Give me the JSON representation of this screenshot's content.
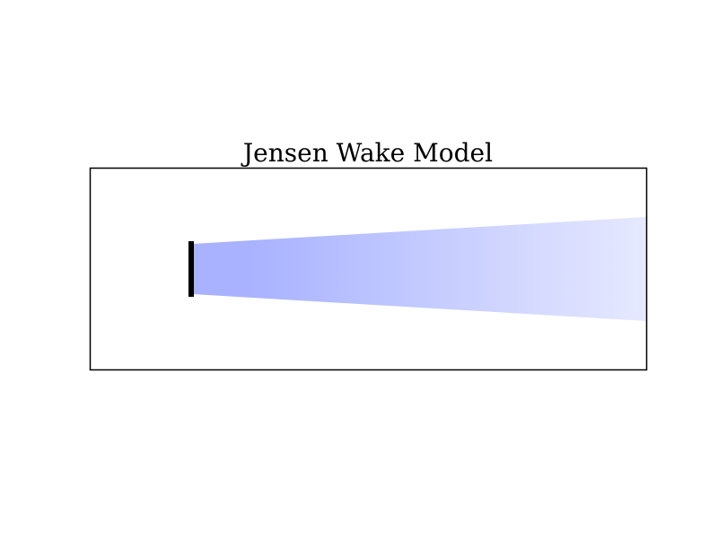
{
  "title": "Jensen Wake Model",
  "colors": {
    "wake_near": "#a8b2ff",
    "wake_far": "#e6e9ff",
    "rotor": "#000000",
    "frame": "#000000"
  },
  "icons": {
    "rotor": "turbine-rotor-icon"
  }
}
